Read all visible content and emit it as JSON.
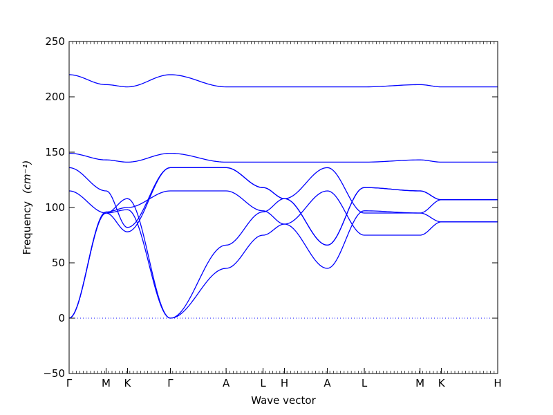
{
  "chart_data": {
    "type": "line",
    "title": "",
    "xlabel": "Wave vector",
    "ylabel": "Frequency",
    "ylabel_unit": "(cm⁻¹)",
    "ylim": [
      -50,
      250
    ],
    "yticks": [
      -50,
      0,
      50,
      100,
      150,
      200,
      250
    ],
    "xlim": [
      0,
      4.0
    ],
    "grid": false,
    "legend": "none",
    "series_color": "#0000ff",
    "zero_line_color": "#0000ff",
    "kpoints": [
      {
        "label": "Γ",
        "x": 0.0
      },
      {
        "label": "M",
        "x": 0.345
      },
      {
        "label": "K",
        "x": 0.545
      },
      {
        "label": "Γ",
        "x": 0.945
      },
      {
        "label": "A",
        "x": 1.465
      },
      {
        "label": "L",
        "x": 1.81
      },
      {
        "label": "H",
        "x": 2.01
      },
      {
        "label": "A",
        "x": 2.41
      },
      {
        "label": "L",
        "x": 2.755
      },
      {
        "label": "M",
        "x": 3.275
      },
      {
        "label": "K",
        "x": 3.475
      },
      {
        "label": "H",
        "x": 4.0
      }
    ],
    "series": [
      {
        "x": [
          0,
          0.345,
          0.545,
          0.945,
          1.465,
          1.81,
          2.01,
          2.41,
          2.755,
          3.275,
          3.475,
          4.0
        ],
        "y": [
          0,
          95,
          98,
          0,
          45,
          75,
          85,
          115,
          75,
          75,
          87,
          87
        ]
      },
      {
        "x": [
          0,
          0.345,
          0.545,
          0.945,
          1.465,
          1.81,
          2.01,
          2.41,
          2.755,
          3.275,
          3.475,
          4.0
        ],
        "y": [
          0,
          95,
          108,
          0,
          66,
          96,
          108,
          136,
          95,
          95,
          107,
          107
        ]
      },
      {
        "x": [
          0,
          0.345,
          0.545,
          0.945,
          1.465,
          1.81,
          2.01,
          2.41,
          2.755,
          3.275,
          3.475,
          4.0
        ],
        "y": [
          0,
          96,
          100,
          115,
          115,
          97,
          85,
          45,
          97,
          95,
          87,
          87
        ]
      },
      {
        "x": [
          0,
          0.345,
          0.545,
          0.945,
          1.465,
          1.81,
          2.01,
          2.41,
          2.755,
          3.275,
          3.475,
          4.0
        ],
        "y": [
          115,
          95,
          78,
          136,
          136,
          118,
          108,
          66,
          118,
          115,
          107,
          107
        ]
      },
      {
        "x": [
          0,
          0.345,
          0.545,
          0.945,
          1.465,
          1.81,
          2.01,
          2.41,
          2.755,
          3.275,
          3.475,
          4.0
        ],
        "y": [
          136,
          115,
          82,
          136,
          136,
          118,
          108,
          66,
          118,
          115,
          107,
          107
        ]
      },
      {
        "x": [
          0,
          0.345,
          0.545,
          0.945,
          1.465,
          1.81,
          2.01,
          2.41,
          2.755,
          3.275,
          3.475,
          4.0
        ],
        "y": [
          149,
          143,
          141,
          149,
          141,
          141,
          141,
          141,
          141,
          143,
          141,
          141
        ]
      },
      {
        "x": [
          0,
          0.345,
          0.545,
          0.945,
          1.465,
          1.81,
          2.01,
          2.41,
          2.755,
          3.275,
          3.475,
          4.0
        ],
        "y": [
          220,
          211,
          209,
          220,
          209,
          209,
          209,
          209,
          209,
          211,
          209,
          209
        ]
      }
    ]
  }
}
